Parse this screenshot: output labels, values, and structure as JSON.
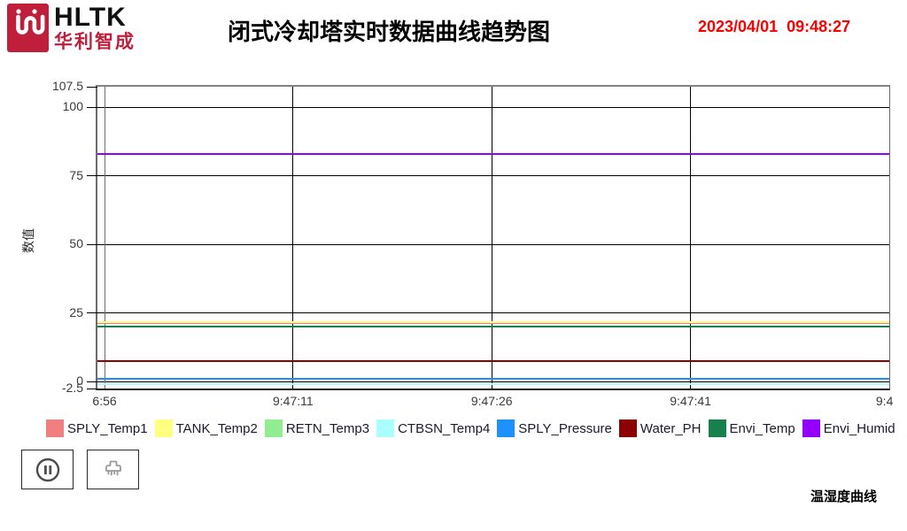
{
  "header": {
    "logo_main": "HLTK",
    "logo_sub": "华利智成",
    "title": "闭式冷却塔实时数据曲线趋势图",
    "datetime": "2023/04/01  09:48:27",
    "brand_color": "#c01f3c",
    "datetime_color": "#ff0000"
  },
  "chart_data": {
    "type": "line",
    "note": "all 8 series are flat horizontal real-time trend lines",
    "ylabel": "数值",
    "ylim": [
      -2.5,
      107.5
    ],
    "yticks": [
      107.5,
      100,
      75,
      50,
      25,
      0,
      -2.5
    ],
    "grid": true,
    "legend_position": "bottom",
    "xticks": [
      {
        "label": "6:56",
        "pos": 0.009
      },
      {
        "label": "9:47:11",
        "pos": 0.247
      },
      {
        "label": "9:47:26",
        "pos": 0.498
      },
      {
        "label": "9:47:41",
        "pos": 0.749
      },
      {
        "label": "9:4",
        "pos": 0.994
      }
    ],
    "series": [
      {
        "name": "SPLY_Temp1",
        "color": "#f08080",
        "value": 21.4
      },
      {
        "name": "TANK_Temp2",
        "color": "#ffff80",
        "value": 21.8
      },
      {
        "name": "RETN_Temp3",
        "color": "#90ee90",
        "value": 20.2
      },
      {
        "name": "CTBSN_Temp4",
        "color": "#aaffff",
        "value": -1.0
      },
      {
        "name": "SPLY_Pressure",
        "color": "#1e90ff",
        "value": 1.0
      },
      {
        "name": "Water_PH",
        "color": "#8b0000",
        "value": 7.6
      },
      {
        "name": "Envi_Temp",
        "color": "#17804d",
        "value": 20.0
      },
      {
        "name": "Envi_Humid",
        "color": "#9400ff",
        "value": 83.0
      }
    ]
  },
  "controls": {
    "pause_icon": "pause-circle-icon",
    "brush_icon": "brush-icon"
  },
  "footer": {
    "label": "温湿度曲线"
  }
}
